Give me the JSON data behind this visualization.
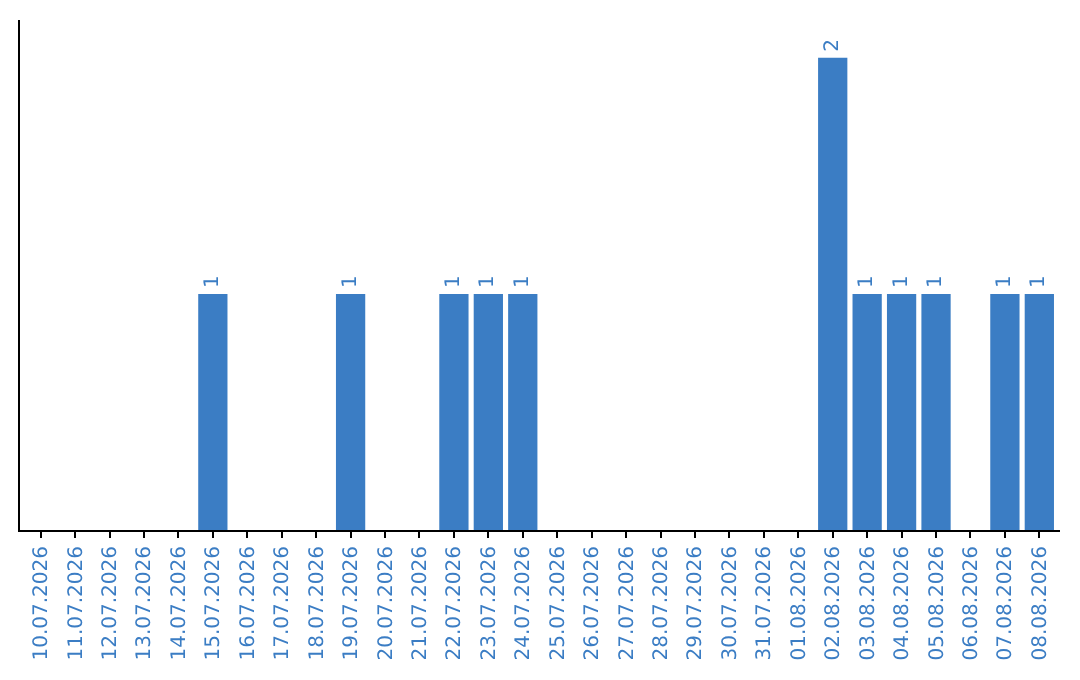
{
  "chart_data": {
    "type": "bar",
    "categories": [
      "10.07.2026",
      "11.07.2026",
      "12.07.2026",
      "13.07.2026",
      "14.07.2026",
      "15.07.2026",
      "16.07.2026",
      "17.07.2026",
      "18.07.2026",
      "19.07.2026",
      "20.07.2026",
      "21.07.2026",
      "22.07.2026",
      "23.07.2026",
      "24.07.2026",
      "25.07.2026",
      "26.07.2026",
      "27.07.2026",
      "28.07.2026",
      "29.07.2026",
      "30.07.2026",
      "31.07.2026",
      "01.08.2026",
      "02.08.2026",
      "03.08.2026",
      "04.08.2026",
      "05.08.2026",
      "06.08.2026",
      "07.08.2026",
      "08.08.2026"
    ],
    "values": [
      0,
      0,
      0,
      0,
      0,
      1,
      0,
      0,
      0,
      1,
      0,
      0,
      1,
      1,
      1,
      0,
      0,
      0,
      0,
      0,
      0,
      0,
      0,
      2,
      1,
      1,
      1,
      0,
      1,
      1
    ],
    "value_labels": [
      null,
      null,
      null,
      null,
      null,
      "1",
      null,
      null,
      null,
      "1",
      null,
      null,
      "1",
      "1",
      "1",
      null,
      null,
      null,
      null,
      null,
      null,
      null,
      null,
      "2",
      "1",
      "1",
      "1",
      null,
      "1",
      "1"
    ],
    "color": "#3b7dc4",
    "tick_labels": "x",
    "legend": false
  }
}
